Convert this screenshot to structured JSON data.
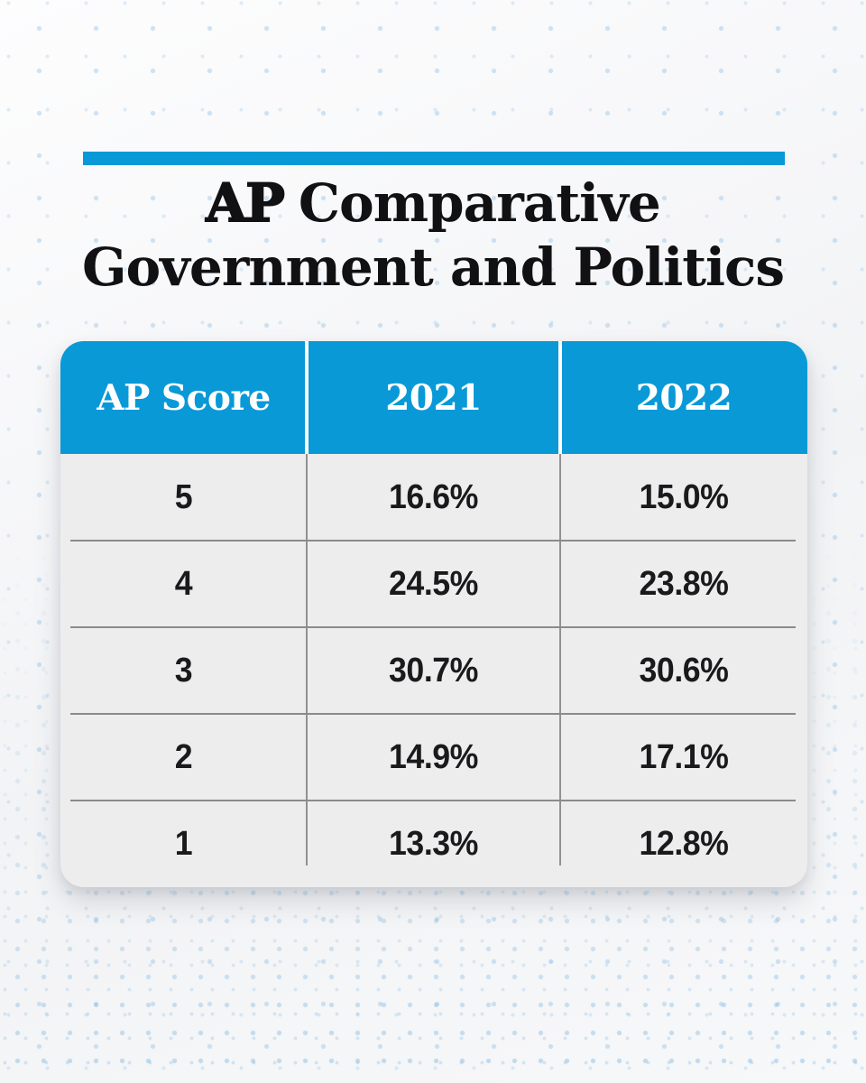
{
  "title": {
    "prefix": "AP",
    "line1_rest": "Comparative",
    "line2": "Government and Politics",
    "full": "AP Comparative Government and Politics"
  },
  "table": {
    "columns": [
      "AP Score",
      "2021",
      "2022"
    ],
    "rows": [
      [
        "5",
        "16.6%",
        "15.0%"
      ],
      [
        "4",
        "24.5%",
        "23.8%"
      ],
      [
        "3",
        "30.7%",
        "30.6%"
      ],
      [
        "2",
        "14.9%",
        "17.1%"
      ],
      [
        "1",
        "13.3%",
        "12.8%"
      ]
    ]
  },
  "colors": {
    "accent_blue": "#0999d7",
    "table_body_bg": "#ededee",
    "row_divider_gray": "#8b8b8e",
    "dot_pattern_blue": "#a8cbe8",
    "text_dark": "#1a1a1c"
  },
  "chart_data": {
    "type": "table",
    "title": "AP Comparative Government and Politics",
    "columns": [
      "AP Score",
      "2021",
      "2022"
    ],
    "categories": [
      "5",
      "4",
      "3",
      "2",
      "1"
    ],
    "series": [
      {
        "name": "2021",
        "values": [
          16.6,
          24.5,
          30.7,
          14.9,
          13.3
        ]
      },
      {
        "name": "2022",
        "values": [
          15.0,
          23.8,
          30.6,
          17.1,
          12.8
        ]
      }
    ],
    "value_unit": "%",
    "legend_position": "none",
    "grid": "table-lines"
  }
}
